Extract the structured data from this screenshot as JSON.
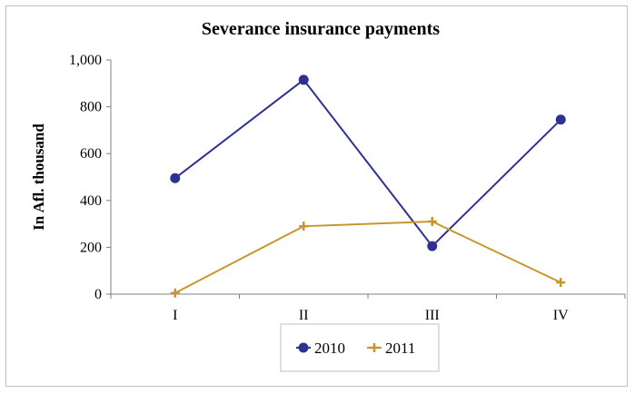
{
  "chart_data": {
    "type": "line",
    "title": "Severance insurance payments",
    "xlabel": "",
    "ylabel": "In Afl. thousand",
    "categories": [
      "I",
      "II",
      "III",
      "IV"
    ],
    "y_ticks": [
      "0",
      "200",
      "400",
      "600",
      "800",
      "1,000"
    ],
    "ylim": [
      0,
      1000
    ],
    "grid": false,
    "legend_position": "bottom",
    "series": [
      {
        "name": "2010",
        "values": [
          495,
          915,
          205,
          745
        ],
        "color": "#2e3192",
        "marker": "circle"
      },
      {
        "name": "2011",
        "values": [
          5,
          290,
          310,
          50
        ],
        "color": "#c8962e",
        "marker": "plus"
      }
    ]
  }
}
